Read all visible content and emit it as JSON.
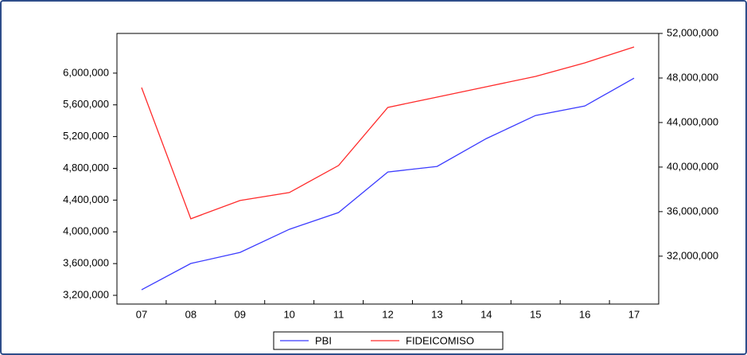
{
  "chart_data": {
    "type": "line",
    "categories": [
      "07",
      "08",
      "09",
      "10",
      "11",
      "12",
      "13",
      "14",
      "15",
      "16",
      "17"
    ],
    "series": [
      {
        "name": "PBI",
        "color": "#3b3bff",
        "values": [
          3270000,
          3601000,
          3741000,
          4032000,
          4243000,
          4754000,
          4824000,
          5175000,
          5466000,
          5586000,
          5937000
        ]
      },
      {
        "name": "FIDEICOMISO",
        "color": "#ff2a2a",
        "axis": "y2",
        "values": [
          47140000,
          35357000,
          37000000,
          37714000,
          40143000,
          45357000,
          46286000,
          47214000,
          48143000,
          49357000,
          50786000
        ]
      }
    ],
    "ylim": [
      3090000,
      6500000
    ],
    "yticks": [
      {
        "value": 3200000,
        "label": "3,200,000"
      },
      {
        "value": 3600000,
        "label": "3,600,000"
      },
      {
        "value": 4000000,
        "label": "4,000,000"
      },
      {
        "value": 4400000,
        "label": "4,400,000"
      },
      {
        "value": 4800000,
        "label": "4,800,000"
      },
      {
        "value": 5200000,
        "label": "5,200,000"
      },
      {
        "value": 5600000,
        "label": "5,600,000"
      },
      {
        "value": 6000000,
        "label": "6,000,000"
      }
    ],
    "y2lim": [
      27700000,
      52000000
    ],
    "y2ticks": [
      {
        "value": 32000000,
        "label": "32,000,000"
      },
      {
        "value": 36000000,
        "label": "36,000,000"
      },
      {
        "value": 40000000,
        "label": "40,000,000"
      },
      {
        "value": 44000000,
        "label": "44,000,000"
      },
      {
        "value": 48000000,
        "label": "48,000,000"
      },
      {
        "value": 52000000,
        "label": "52,000,000"
      }
    ],
    "legend": "bottom"
  }
}
